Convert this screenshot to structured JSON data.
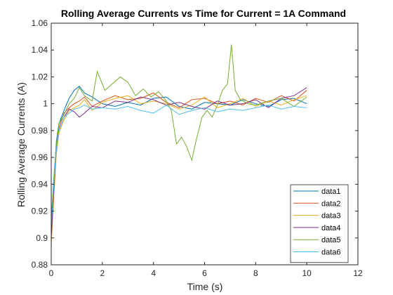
{
  "chart_data": {
    "type": "line",
    "title": "Rolling Average Currents vs Time for Current = 1A Command",
    "xlabel": "Time (s)",
    "ylabel": "Rolling Average Currents (A)",
    "xlim": [
      0,
      12
    ],
    "ylim": [
      0.88,
      1.06
    ],
    "xticks": [
      0,
      2,
      4,
      6,
      8,
      10,
      12
    ],
    "yticks": [
      0.88,
      0.9,
      0.92,
      0.94,
      0.96,
      0.98,
      1,
      1.02,
      1.04,
      1.06
    ],
    "xtick_labels": [
      "0",
      "2",
      "4",
      "6",
      "8",
      "10",
      "12"
    ],
    "ytick_labels": [
      "0.88",
      "0.9",
      "0.92",
      "0.94",
      "0.96",
      "0.98",
      "1",
      "1.02",
      "1.04",
      "1.06"
    ],
    "grid": false,
    "legend_position": "bottom-right",
    "series": [
      {
        "name": "data1",
        "color": "#0072BD",
        "x": [
          0,
          0.1,
          0.2,
          0.3,
          0.5,
          0.7,
          0.9,
          1.1,
          1.3,
          1.6,
          2.0,
          2.5,
          3.0,
          3.5,
          4.0,
          4.5,
          5.0,
          5.5,
          6.0,
          6.5,
          7.0,
          7.5,
          8.0,
          8.5,
          9.0,
          9.5,
          10.0
        ],
        "y": [
          0.905,
          0.94,
          0.972,
          0.985,
          0.995,
          1.004,
          1.01,
          1.013,
          1.008,
          1.005,
          1.0,
          0.998,
          1.001,
          0.999,
          1.004,
          1.005,
          0.998,
          0.996,
          1.001,
          1.0,
          0.999,
          1.003,
          1.0,
          0.998,
          1.003,
          1.004,
          1.0
        ]
      },
      {
        "name": "data2",
        "color": "#D95319",
        "x": [
          0,
          0.1,
          0.2,
          0.3,
          0.5,
          0.7,
          0.9,
          1.1,
          1.3,
          1.6,
          2.0,
          2.5,
          3.0,
          3.5,
          4.0,
          4.5,
          5.0,
          5.5,
          6.0,
          6.5,
          7.0,
          7.5,
          8.0,
          8.5,
          9.0,
          9.5,
          10.0
        ],
        "y": [
          0.91,
          0.94,
          0.968,
          0.982,
          0.993,
          0.997,
          1.0,
          1.002,
          1.005,
          0.998,
          1.002,
          1.006,
          1.003,
          1.004,
          1.008,
          1.001,
          0.997,
          1.003,
          1.004,
          1.0,
          1.002,
          0.999,
          1.004,
          1.001,
          1.006,
          1.002,
          1.01
        ]
      },
      {
        "name": "data3",
        "color": "#EDB120",
        "x": [
          0,
          0.1,
          0.2,
          0.3,
          0.5,
          0.7,
          0.9,
          1.1,
          1.3,
          1.6,
          2.0,
          2.5,
          3.0,
          3.5,
          4.0,
          4.5,
          5.0,
          5.5,
          6.0,
          6.5,
          7.0,
          7.5,
          8.0,
          8.5,
          9.0,
          9.5,
          10.0
        ],
        "y": [
          0.895,
          0.93,
          0.962,
          0.978,
          0.988,
          0.995,
          0.997,
          0.999,
          1.003,
          0.995,
          1.001,
          1.004,
          1.006,
          1.0,
          1.002,
          1.0,
          0.996,
          0.999,
          1.005,
          0.997,
          1.0,
          1.004,
          0.998,
          1.002,
          0.999,
          1.003,
          1.006
        ]
      },
      {
        "name": "data4",
        "color": "#7E2F8E",
        "x": [
          0,
          0.1,
          0.2,
          0.3,
          0.5,
          0.7,
          0.9,
          1.1,
          1.3,
          1.6,
          2.0,
          2.5,
          3.0,
          3.5,
          4.0,
          4.5,
          5.0,
          5.5,
          6.0,
          6.5,
          7.0,
          7.5,
          8.0,
          8.5,
          9.0,
          9.5,
          10.0
        ],
        "y": [
          0.9,
          0.935,
          0.966,
          0.98,
          0.99,
          0.996,
          0.994,
          0.99,
          0.993,
          0.998,
          0.997,
          1.002,
          1.001,
          1.005,
          1.003,
          0.999,
          1.001,
          0.998,
          0.996,
          1.002,
          0.999,
          1.0,
          1.003,
          0.997,
          1.004,
          1.006,
          1.012
        ]
      },
      {
        "name": "data5",
        "color": "#77AC30",
        "x": [
          0,
          0.1,
          0.2,
          0.3,
          0.5,
          0.7,
          0.9,
          1.1,
          1.3,
          1.6,
          1.8,
          2.1,
          2.4,
          2.7,
          3.0,
          3.3,
          3.6,
          3.9,
          4.2,
          4.5,
          4.7,
          4.9,
          5.1,
          5.3,
          5.5,
          5.7,
          5.9,
          6.1,
          6.3,
          6.5,
          6.7,
          6.9,
          7.05,
          7.2,
          7.4,
          7.7,
          8.0,
          8.5,
          9.0,
          9.5,
          10.0
        ],
        "y": [
          0.915,
          0.945,
          0.97,
          0.985,
          0.992,
          1.0,
          1.004,
          1.012,
          1.006,
          1.002,
          1.024,
          1.01,
          1.015,
          1.02,
          1.016,
          1.006,
          1.011,
          1.005,
          1.009,
          1.002,
          0.995,
          0.97,
          0.975,
          0.968,
          0.958,
          0.975,
          0.99,
          0.995,
          0.99,
          0.999,
          1.01,
          1.015,
          1.044,
          1.01,
          1.003,
          1.0,
          0.999,
          1.002,
          1.004,
          0.998,
          1.005
        ]
      },
      {
        "name": "data6",
        "color": "#4DBEEE",
        "x": [
          0,
          0.1,
          0.2,
          0.3,
          0.5,
          0.7,
          0.9,
          1.1,
          1.3,
          1.6,
          2.0,
          2.5,
          3.0,
          3.5,
          4.0,
          4.5,
          5.0,
          5.5,
          6.0,
          6.5,
          7.0,
          7.5,
          8.0,
          8.5,
          9.0,
          9.5,
          10.0
        ],
        "y": [
          0.91,
          0.94,
          0.965,
          0.98,
          0.99,
          0.993,
          0.996,
          0.997,
          0.999,
          0.996,
          0.997,
          0.996,
          0.998,
          0.995,
          0.993,
          0.999,
          0.992,
          0.995,
          0.997,
          0.994,
          0.996,
          0.995,
          0.997,
          0.999,
          0.996,
          0.998,
          0.997
        ]
      }
    ]
  }
}
